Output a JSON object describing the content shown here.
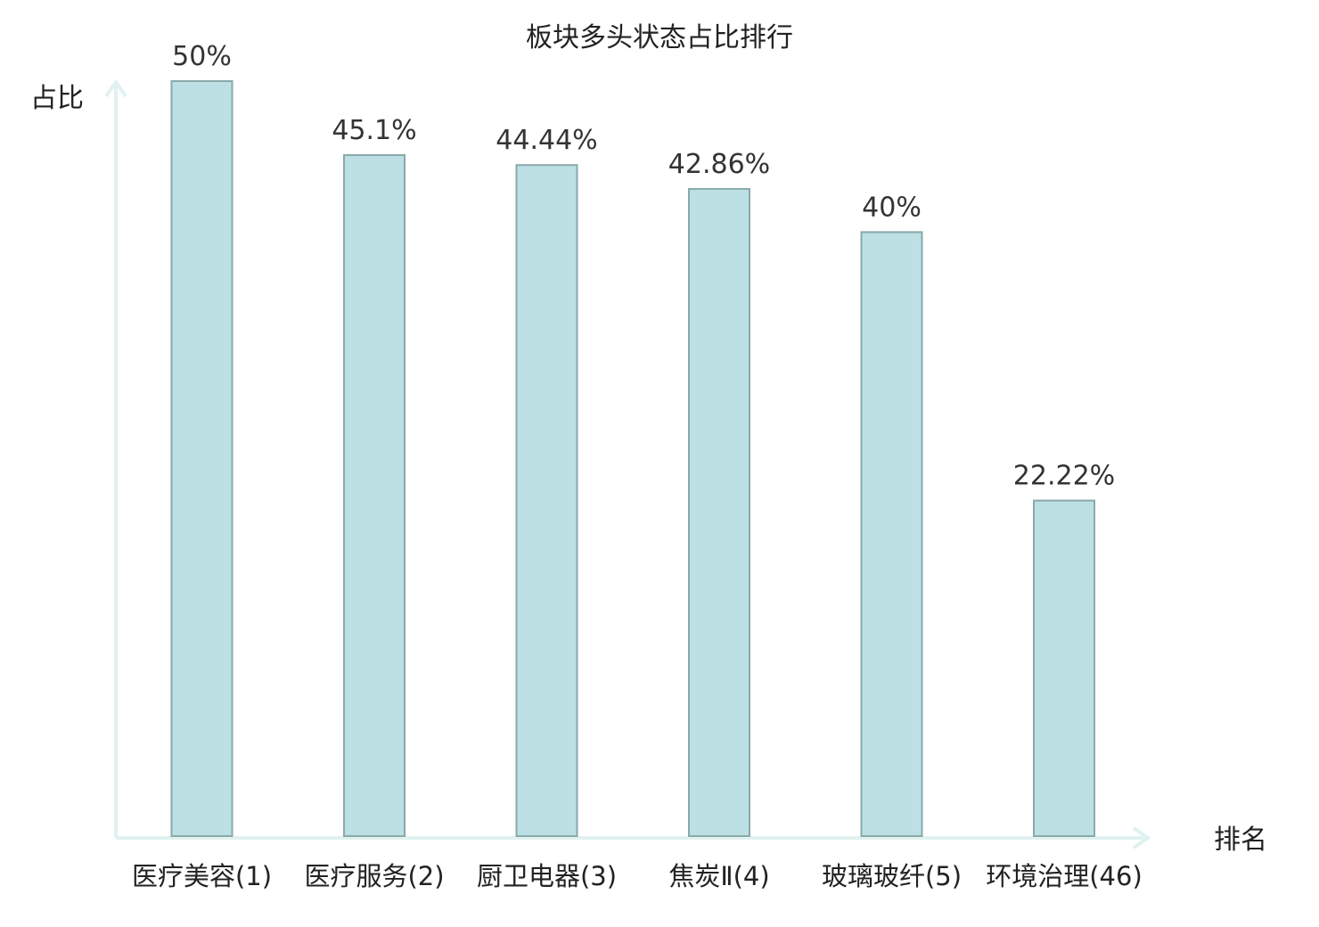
{
  "chart_data": {
    "type": "bar",
    "title": "板块多头状态占比排行",
    "ylabel": "占比",
    "xlabel": "排名",
    "categories": [
      {
        "name": "医疗美容",
        "rank": "(1)"
      },
      {
        "name": "医疗服务",
        "rank": "(2)"
      },
      {
        "name": "厨卫电器",
        "rank": "(3)"
      },
      {
        "name": "焦炭Ⅱ",
        "rank": "(4)"
      },
      {
        "name": "玻璃玻纤",
        "rank": "(5)"
      },
      {
        "name": "环境治理",
        "rank": "(46)"
      }
    ],
    "values": [
      50,
      45.1,
      44.44,
      42.86,
      40,
      22.22
    ],
    "value_labels": [
      "50%",
      "45.1%",
      "44.44%",
      "42.86%",
      "40%",
      "22.22%"
    ],
    "ylim": [
      0,
      50
    ],
    "grid": false,
    "highlight_index": 5,
    "colors": {
      "bar_fill": "#bce0e3",
      "bar_stroke": "#8aa9ab",
      "axis": "#e0f2ef",
      "text": "#222222",
      "highlight_text": "#e00000"
    }
  }
}
